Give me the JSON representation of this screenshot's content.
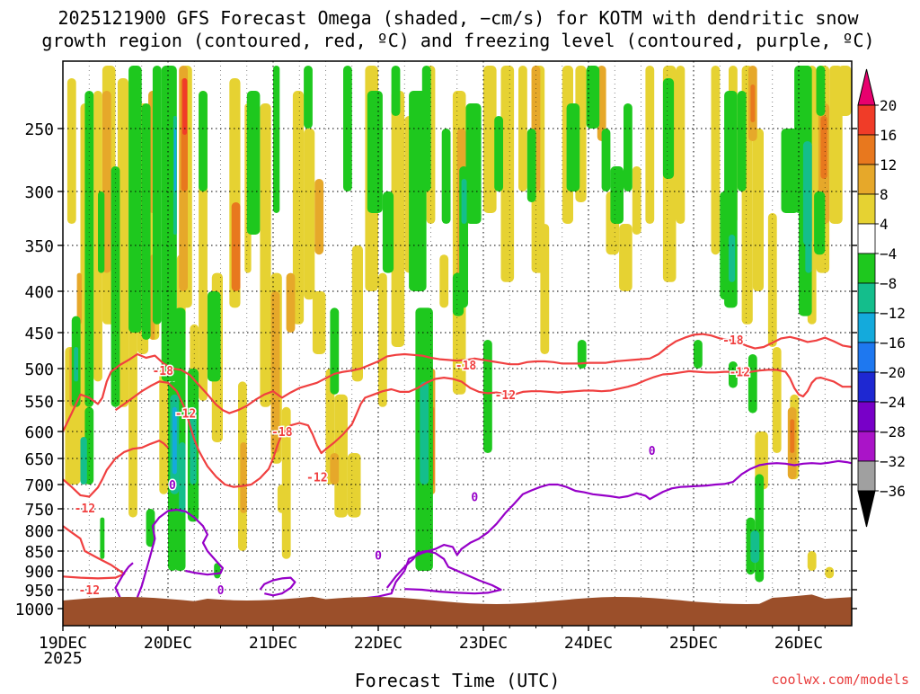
{
  "chart_data": {
    "type": "heatmap",
    "title": "2025121900 GFS Forecast Omega (shaded, −cm/s) for KOTM with dendritic snow",
    "subtitle": "growth region (contoured, red, ºC) and freezing level (contoured, purple, ºC)",
    "xlabel": "Forecast Time (UTC)",
    "ylabel": "",
    "credit": "coolwx.com/models",
    "y_axis": {
      "scale": "pressure",
      "ticks": [
        250,
        300,
        350,
        400,
        450,
        500,
        550,
        600,
        650,
        700,
        750,
        800,
        850,
        900,
        950,
        1000
      ],
      "range_hPa": [
        200,
        1025
      ],
      "grid": "dotted"
    },
    "x_axis": {
      "ticks": [
        "19DEC",
        "20DEC",
        "21DEC",
        "22DEC",
        "23DEC",
        "24DEC",
        "25DEC",
        "26DEC"
      ],
      "year_label": "2025",
      "hours_range": [
        0,
        180
      ],
      "grid": "dotted"
    },
    "colorbar": {
      "labels": [
        "20",
        "16",
        "12",
        "8",
        "4",
        "−4",
        "−8",
        "−12",
        "−16",
        "−20",
        "−24",
        "−28",
        "−32",
        "−36"
      ],
      "colors": [
        "#e8006e",
        "#f03c28",
        "#e8781e",
        "#e6a82a",
        "#e6d232",
        "#ffffff",
        "#1ec81e",
        "#14be8c",
        "#14aadc",
        "#1e78f0",
        "#1e28d2",
        "#7800c8",
        "#aa14c8",
        "#a0a0a0",
        "#000000"
      ]
    },
    "contours": {
      "dgz_color": "#f04040",
      "freezing_color": "#9600c8",
      "labels": [
        "-18",
        "-12",
        "-12",
        "-12",
        "-18",
        "-18",
        "-12",
        "-12",
        "-18",
        "-12",
        "-12",
        "-18",
        "-12",
        "0",
        "0",
        "0",
        "0",
        "0"
      ]
    },
    "ground_color": "#9b4f2a",
    "notable_fields": [
      {
        "name": "green-bands",
        "color": "#1ec81e"
      },
      {
        "name": "yellow-bands",
        "color": "#e6d232"
      }
    ]
  }
}
